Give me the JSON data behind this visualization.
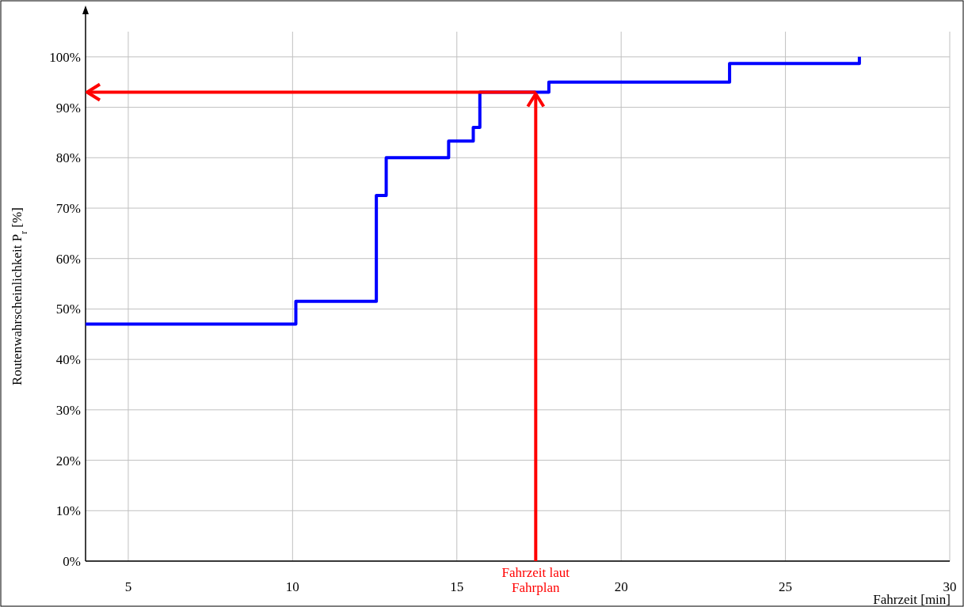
{
  "chart_data": {
    "type": "step",
    "xlabel": "Fahrzeit  [min]",
    "ylabel": "Routenwahrscheinlichkeit P$_{r}$ [%]",
    "x": [
      3.7,
      10.1,
      12.55,
      12.85,
      14.75,
      15.5,
      15.7,
      17.8,
      23.3,
      27.25
    ],
    "series": [
      {
        "color": "#0000ff",
        "values": [
          47,
          51.5,
          72.5,
          80,
          83.3,
          86,
          93,
          95,
          98.7,
          100
        ]
      }
    ],
    "xlim": [
      3.7,
      30
    ],
    "xticks": [
      5,
      10,
      15,
      20,
      25,
      30
    ],
    "ylim": [
      0,
      105
    ],
    "yticks": [
      {
        "value": 0,
        "label": "0%"
      },
      {
        "value": 10,
        "label": "10%"
      },
      {
        "value": 20,
        "label": "20%"
      },
      {
        "value": 30,
        "label": "30%"
      },
      {
        "value": 40,
        "label": "40%"
      },
      {
        "value": 50,
        "label": "50%"
      },
      {
        "value": 60,
        "label": "60%"
      },
      {
        "value": 70,
        "label": "70%"
      },
      {
        "value": 80,
        "label": "80%"
      },
      {
        "value": 90,
        "label": "90%"
      },
      {
        "value": 100,
        "label": "100%"
      }
    ],
    "grid": true,
    "ref_lines": [
      {
        "axis": "x",
        "value": 17.4,
        "label": "Fahrzeit laut Fahrplan",
        "color": "#ff0000"
      },
      {
        "axis": "y",
        "value": 93,
        "color": "#ff0000"
      }
    ]
  }
}
